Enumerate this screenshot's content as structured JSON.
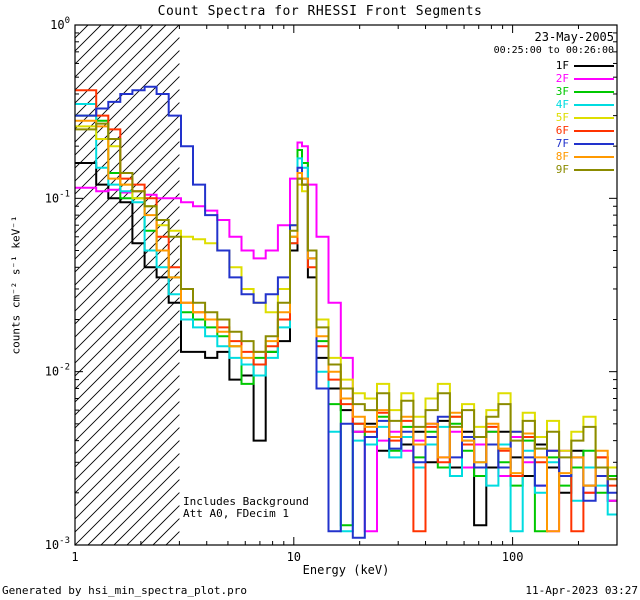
{
  "header": {
    "title": "Count Spectra for RHESSI Front Segments"
  },
  "annotations": {
    "date": "23-May-2005",
    "time_range": "00:25:00 to 00:26:00",
    "background_note": "Includes Background",
    "att_note": "Att A0, FDecim 1"
  },
  "footer": {
    "generated_by": "Generated by hsi_min_spectra_plot.pro",
    "timestamp": "11-Apr-2023 03:27"
  },
  "chart_data": {
    "type": "line",
    "title": "Count Spectra for RHESSI Front Segments",
    "x_scale": "log",
    "y_scale": "log",
    "xlabel": "Energy (keV)",
    "ylabel": "counts cm⁻² s⁻¹ keV⁻¹",
    "xlim": [
      1,
      300
    ],
    "ylim": [
      0.001,
      1
    ],
    "x_major_ticks": [
      1,
      10,
      100
    ],
    "y_major_tick_exponents": [
      -3,
      -2,
      -1,
      0
    ],
    "hatch_region_kev": [
      1,
      3
    ],
    "line_style": "histogram-step",
    "legend_position": "top-right",
    "energies_kev": [
      1.1,
      1.25,
      1.42,
      1.61,
      1.83,
      2.08,
      2.36,
      2.68,
      3.05,
      3.46,
      3.93,
      4.47,
      5.08,
      5.77,
      6.55,
      7.44,
      8.46,
      9.61,
      10.4,
      10.9,
      11.6,
      12.7,
      14.4,
      16.4,
      18.6,
      21.1,
      24.0,
      27.3,
      31.0,
      35.2,
      40.0,
      45.5,
      51.7,
      58.7,
      66.7,
      75.8,
      86.1,
      97.9,
      111.2,
      126.4,
      143.6,
      163.2,
      185.4,
      210.7,
      239.4,
      272.0
    ],
    "series": [
      {
        "name": "1F",
        "color": "#000000",
        "values": [
          0.16,
          0.12,
          0.1,
          0.095,
          0.055,
          0.04,
          0.035,
          0.025,
          0.013,
          0.013,
          0.012,
          0.013,
          0.009,
          0.0095,
          0.004,
          0.013,
          0.015,
          0.05,
          0.14,
          0.12,
          0.035,
          0.012,
          0.008,
          0.006,
          0.0045,
          0.005,
          0.0035,
          0.0042,
          0.0038,
          0.0045,
          0.003,
          0.0052,
          0.0028,
          0.0045,
          0.0013,
          0.0028,
          0.0045,
          0.0032,
          0.0025,
          0.0038,
          0.0028,
          0.002,
          0.0035,
          0.0022,
          0.0028,
          0.0018
        ]
      },
      {
        "name": "2F",
        "color": "#ff00ff",
        "values": [
          0.115,
          0.11,
          0.112,
          0.108,
          0.11,
          0.105,
          0.1,
          0.1,
          0.095,
          0.09,
          0.085,
          0.075,
          0.06,
          0.05,
          0.045,
          0.05,
          0.07,
          0.13,
          0.21,
          0.2,
          0.12,
          0.06,
          0.025,
          0.012,
          0.0045,
          0.0012,
          0.004,
          0.0045,
          0.0035,
          0.004,
          0.005,
          0.0032,
          0.0045,
          0.0028,
          0.0038,
          0.0045,
          0.0025,
          0.0042,
          0.003,
          0.0022,
          0.0012,
          0.0035,
          0.0028,
          0.002,
          0.0032,
          0.0018
        ]
      },
      {
        "name": "3F",
        "color": "#00c800",
        "values": [
          0.3,
          0.28,
          0.14,
          0.1,
          0.1,
          0.065,
          0.05,
          0.035,
          0.022,
          0.02,
          0.018,
          0.016,
          0.014,
          0.0085,
          0.012,
          0.013,
          0.02,
          0.06,
          0.19,
          0.16,
          0.05,
          0.015,
          0.0065,
          0.0013,
          0.005,
          0.0042,
          0.0055,
          0.0035,
          0.0048,
          0.0032,
          0.0045,
          0.0028,
          0.005,
          0.0035,
          0.0025,
          0.0045,
          0.003,
          0.0022,
          0.004,
          0.0012,
          0.0032,
          0.0022,
          0.0028,
          0.0035,
          0.002,
          0.0025
        ]
      },
      {
        "name": "4F",
        "color": "#00dce0",
        "values": [
          0.35,
          0.15,
          0.12,
          0.11,
          0.095,
          0.05,
          0.04,
          0.028,
          0.02,
          0.018,
          0.016,
          0.014,
          0.012,
          0.011,
          0.0095,
          0.012,
          0.018,
          0.055,
          0.17,
          0.15,
          0.045,
          0.01,
          0.0045,
          0.0012,
          0.004,
          0.0038,
          0.0048,
          0.0032,
          0.0042,
          0.0028,
          0.0038,
          0.0048,
          0.0025,
          0.004,
          0.003,
          0.0022,
          0.0038,
          0.0012,
          0.0035,
          0.002,
          0.003,
          0.0025,
          0.0018,
          0.0028,
          0.0022,
          0.0015
        ]
      },
      {
        "name": "5F",
        "color": "#dede00",
        "values": [
          0.26,
          0.22,
          0.2,
          0.12,
          0.1,
          0.09,
          0.07,
          0.065,
          0.06,
          0.058,
          0.055,
          0.05,
          0.04,
          0.03,
          0.025,
          0.022,
          0.03,
          0.07,
          0.12,
          0.11,
          0.05,
          0.02,
          0.012,
          0.009,
          0.0075,
          0.007,
          0.0085,
          0.006,
          0.0075,
          0.0055,
          0.007,
          0.0085,
          0.0055,
          0.0065,
          0.0048,
          0.006,
          0.0075,
          0.0045,
          0.0058,
          0.0042,
          0.0052,
          0.0035,
          0.0045,
          0.0055,
          0.0032,
          0.0028
        ]
      },
      {
        "name": "6F",
        "color": "#ff3300",
        "values": [
          0.42,
          0.3,
          0.25,
          0.13,
          0.12,
          0.1,
          0.06,
          0.04,
          0.025,
          0.022,
          0.02,
          0.018,
          0.015,
          0.013,
          0.011,
          0.014,
          0.02,
          0.055,
          0.13,
          0.12,
          0.04,
          0.014,
          0.009,
          0.0065,
          0.005,
          0.0045,
          0.0058,
          0.004,
          0.0052,
          0.0012,
          0.0048,
          0.003,
          0.0055,
          0.0038,
          0.0028,
          0.0048,
          0.0035,
          0.0025,
          0.0042,
          0.003,
          0.0035,
          0.0025,
          0.0012,
          0.002,
          0.0032,
          0.0022
        ]
      },
      {
        "name": "7F",
        "color": "#2233cc",
        "values": [
          0.3,
          0.33,
          0.36,
          0.4,
          0.42,
          0.44,
          0.4,
          0.3,
          0.2,
          0.12,
          0.08,
          0.05,
          0.035,
          0.028,
          0.025,
          0.028,
          0.035,
          0.07,
          0.15,
          0.13,
          0.045,
          0.008,
          0.0012,
          0.005,
          0.0011,
          0.0042,
          0.0052,
          0.0036,
          0.0045,
          0.003,
          0.0042,
          0.0055,
          0.0032,
          0.0042,
          0.0028,
          0.0038,
          0.0028,
          0.0045,
          0.0032,
          0.0022,
          0.0035,
          0.0025,
          0.0032,
          0.0018,
          0.0025,
          0.002
        ]
      },
      {
        "name": "8F",
        "color": "#ff9900",
        "values": [
          0.28,
          0.26,
          0.13,
          0.12,
          0.11,
          0.08,
          0.05,
          0.035,
          0.025,
          0.022,
          0.02,
          0.017,
          0.014,
          0.012,
          0.013,
          0.015,
          0.022,
          0.06,
          0.14,
          0.13,
          0.045,
          0.016,
          0.01,
          0.007,
          0.0055,
          0.0048,
          0.006,
          0.0042,
          0.0055,
          0.0038,
          0.005,
          0.0032,
          0.0058,
          0.004,
          0.003,
          0.005,
          0.0036,
          0.0026,
          0.0044,
          0.0032,
          0.0012,
          0.0026,
          0.0032,
          0.0022,
          0.0035,
          0.0024
        ]
      },
      {
        "name": "9F",
        "color": "#8b8b00",
        "values": [
          0.25,
          0.27,
          0.22,
          0.14,
          0.11,
          0.09,
          0.075,
          0.06,
          0.03,
          0.025,
          0.022,
          0.02,
          0.017,
          0.015,
          0.013,
          0.016,
          0.025,
          0.065,
          0.13,
          0.12,
          0.05,
          0.018,
          0.011,
          0.008,
          0.0065,
          0.006,
          0.0075,
          0.0052,
          0.0068,
          0.0048,
          0.006,
          0.0075,
          0.0048,
          0.006,
          0.0042,
          0.0055,
          0.0065,
          0.004,
          0.0052,
          0.0036,
          0.0045,
          0.0032,
          0.004,
          0.0048,
          0.0028,
          0.0024
        ]
      }
    ]
  }
}
